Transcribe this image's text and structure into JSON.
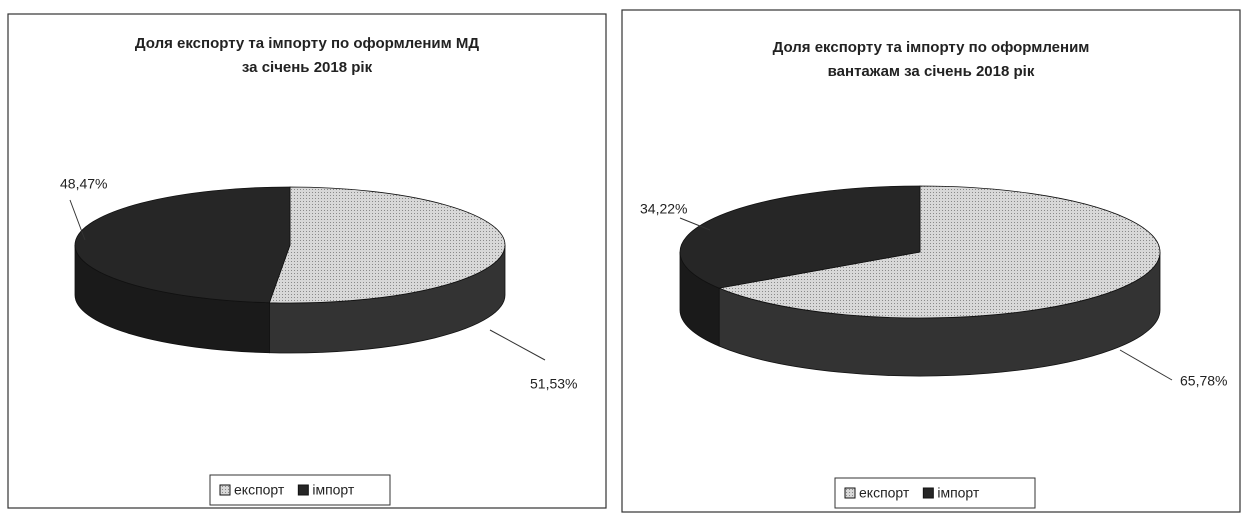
{
  "chart_data": [
    {
      "type": "pie",
      "title": [
        "Доля експорту та імпорту по оформленим МД",
        "за січень 2018 рік"
      ],
      "categories": [
        "експорт",
        "імпорт"
      ],
      "values": [
        51.53,
        48.47
      ],
      "value_labels": [
        "51,53%",
        "48,47%"
      ],
      "colors": [
        "#cfcfcf",
        "#262626"
      ],
      "legend": "bottom"
    },
    {
      "type": "pie",
      "title": [
        "Доля експорту та імпорту по оформленим",
        "вантажам за січень 2018 рік"
      ],
      "categories": [
        "експорт",
        "імпорт"
      ],
      "values": [
        65.78,
        34.22
      ],
      "value_labels": [
        "65,78%",
        "34,22%"
      ],
      "colors": [
        "#cfcfcf",
        "#262626"
      ],
      "legend": "bottom"
    }
  ]
}
